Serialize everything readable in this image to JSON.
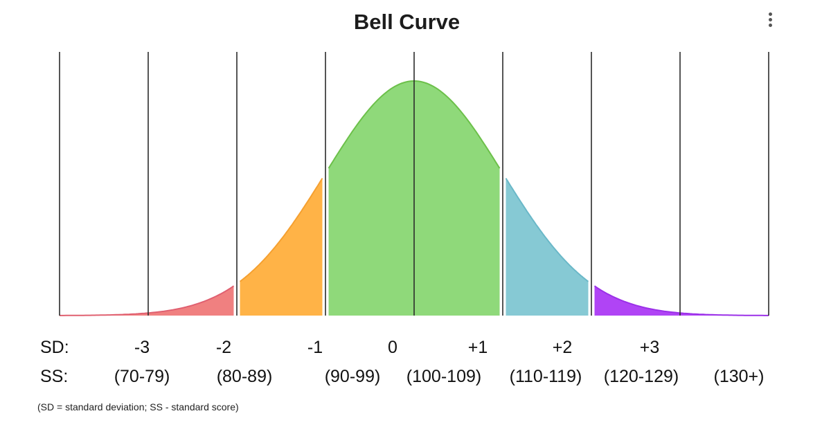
{
  "header": {
    "title": "Bell Curve",
    "menu_icon": "more-vertical-icon"
  },
  "chart_data": {
    "type": "area",
    "title": "Bell Curve",
    "x_range": [
      -4,
      4
    ],
    "grid": true,
    "distribution": {
      "kind": "normal",
      "mean": 0.0,
      "sd": 1.0
    },
    "rows": [
      {
        "label": "SD:",
        "ticks": [
          "-3",
          "-2",
          "-1",
          "0",
          "+1",
          "+2",
          "+3"
        ]
      },
      {
        "label": "SS:",
        "ticks": [
          "(70-79)",
          "(80-89)",
          "(90-99)",
          "(100-109)",
          "(110-119)",
          "(120-129)",
          "(130+)"
        ]
      }
    ],
    "segments": [
      {
        "from": -4,
        "to": -2,
        "color": "#f08080"
      },
      {
        "from": -2,
        "to": -1,
        "color": "#ffb347"
      },
      {
        "from": -1,
        "to": 1,
        "color": "#8fd97a"
      },
      {
        "from": 1,
        "to": 2,
        "color": "#86c9d4"
      },
      {
        "from": 2,
        "to": 4,
        "color": "#b044f5"
      }
    ],
    "edge_colors": [
      "#e06070",
      "#f5a030",
      "#6cc04a",
      "#6ab8c8",
      "#9b30e8"
    ]
  },
  "footnote": "(SD = standard deviation; SS - standard score)"
}
